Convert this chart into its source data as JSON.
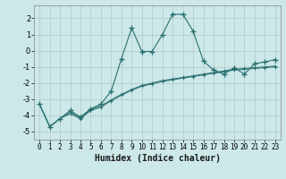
{
  "xlabel": "Humidex (Indice chaleur)",
  "background_color": "#cce8e8",
  "grid_color": "#b0c8c8",
  "line_color": "#2a7070",
  "xlim": [
    -0.5,
    23.5
  ],
  "ylim": [
    -5.5,
    2.8
  ],
  "yticks": [
    -5,
    -4,
    -3,
    -2,
    -1,
    0,
    1,
    2
  ],
  "xticks": [
    0,
    1,
    2,
    3,
    4,
    5,
    6,
    7,
    8,
    9,
    10,
    11,
    12,
    13,
    14,
    15,
    16,
    17,
    18,
    19,
    20,
    21,
    22,
    23
  ],
  "series_main": {
    "x": [
      0,
      1,
      2,
      3,
      4,
      5,
      6,
      7,
      8,
      9,
      10,
      11,
      12,
      13,
      14,
      15,
      16,
      17,
      18,
      19,
      20,
      21,
      22,
      23
    ],
    "y": [
      -3.3,
      -4.7,
      -4.2,
      -3.7,
      -4.1,
      -3.6,
      -3.3,
      -2.5,
      -0.5,
      1.4,
      -0.05,
      -0.05,
      1.0,
      2.25,
      2.25,
      1.2,
      -0.65,
      -1.2,
      -1.45,
      -1.05,
      -1.45,
      -0.8,
      -0.7,
      -0.55
    ]
  },
  "series_linear1": {
    "x": [
      0,
      4,
      5,
      6,
      7,
      8,
      9,
      10,
      11,
      12,
      13,
      14,
      15,
      16,
      17,
      18,
      19,
      20,
      21,
      22,
      23
    ],
    "y": [
      -3.3,
      -4.1,
      -3.6,
      -3.3,
      -3.0,
      -2.7,
      -2.45,
      -2.25,
      -2.1,
      -2.0,
      -1.9,
      -1.8,
      -1.75,
      -1.6,
      -1.5,
      -1.4,
      -1.3,
      -1.25,
      -1.2,
      -1.1,
      -1.05
    ]
  },
  "series_linear2": {
    "x": [
      0,
      1,
      2,
      3,
      4,
      5,
      6,
      7,
      8,
      9,
      10,
      11,
      12,
      13,
      14,
      15,
      16,
      17,
      18,
      19,
      20,
      21,
      22,
      23
    ],
    "y": [
      -3.3,
      -4.7,
      -4.2,
      -3.9,
      -4.2,
      -3.7,
      -3.5,
      -3.1,
      -2.75,
      -2.45,
      -2.2,
      -2.05,
      -1.9,
      -1.8,
      -1.7,
      -1.6,
      -1.5,
      -1.4,
      -1.3,
      -1.2,
      -1.15,
      -1.1,
      -1.05,
      -1.0
    ]
  },
  "series_linear3": {
    "x": [
      0,
      1,
      2,
      3,
      4,
      5,
      6,
      7,
      8,
      9,
      10,
      11,
      12,
      13,
      14,
      15,
      16,
      17,
      18,
      19,
      20,
      21,
      22,
      23
    ],
    "y": [
      -3.3,
      -4.7,
      -4.2,
      -3.8,
      -4.15,
      -3.65,
      -3.4,
      -3.05,
      -2.7,
      -2.4,
      -2.15,
      -2.0,
      -1.85,
      -1.75,
      -1.65,
      -1.55,
      -1.45,
      -1.35,
      -1.25,
      -1.15,
      -1.1,
      -1.05,
      -1.0,
      -0.95
    ]
  }
}
